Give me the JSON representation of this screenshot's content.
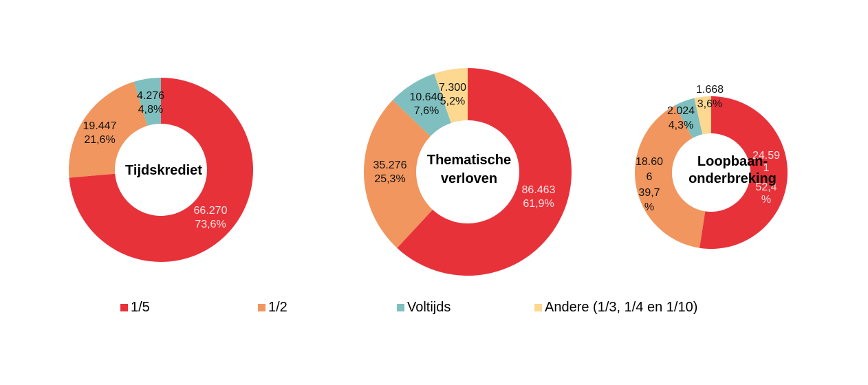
{
  "colors": {
    "one_fifth": "#e8323a",
    "half": "#f0965e",
    "full": "#7fbfbf",
    "other": "#fdd891"
  },
  "chart_data": [
    {
      "type": "pie",
      "title": "Tijdskrediet",
      "categories": [
        "1/5",
        "1/2",
        "Voltijds"
      ],
      "values": [
        66270,
        19447,
        4276
      ],
      "percentages": [
        73.6,
        21.6,
        4.8
      ],
      "labels": [
        {
          "value": "66.270",
          "pct": "73,6%"
        },
        {
          "value": "19.447",
          "pct": "21,6%"
        },
        {
          "value": "4.276",
          "pct": "4,8%"
        }
      ]
    },
    {
      "type": "pie",
      "title": "Thematische verloven",
      "categories": [
        "1/5",
        "1/2",
        "Voltijds",
        "Andere (1/3, 1/4 en 1/10)"
      ],
      "values": [
        86463,
        35276,
        10640,
        7300
      ],
      "percentages": [
        61.9,
        25.3,
        7.6,
        5.2
      ],
      "labels": [
        {
          "value": "86.463",
          "pct": "61,9%"
        },
        {
          "value": "35.276",
          "pct": "25,3%"
        },
        {
          "value": "10.640",
          "pct": "7,6%"
        },
        {
          "value": "7.300",
          "pct": "5,2%"
        }
      ]
    },
    {
      "type": "pie",
      "title": "Loopbaanonderbreking",
      "categories": [
        "1/5",
        "1/2",
        "Voltijds",
        "Andere (1/3, 1/4 en 1/10)"
      ],
      "values": [
        24591,
        18606,
        2024,
        1668
      ],
      "percentages": [
        52.4,
        39.7,
        4.3,
        3.6
      ],
      "labels": [
        {
          "value": "24.591",
          "pct": "52,4%"
        },
        {
          "value": "18.606",
          "pct": "39,7%"
        },
        {
          "value": "2.024",
          "pct": "4,3%"
        },
        {
          "value": "1.668",
          "pct": "3,6%"
        }
      ]
    }
  ],
  "charts": {
    "c1": {
      "title": "Tijdskrediet",
      "l1a": "66.270",
      "l1b": "73,6%",
      "l2a": "19.447",
      "l2b": "21,6%",
      "l3a": "4.276",
      "l3b": "4,8%"
    },
    "c2": {
      "title1": "Thematische",
      "title2": "verloven",
      "l1a": "86.463",
      "l1b": "61,9%",
      "l2a": "35.276",
      "l2b": "25,3%",
      "l3a": "10.640",
      "l3b": "7,6%",
      "l4a": "7.300",
      "l4b": "5,2%"
    },
    "c3": {
      "title1": "Loopbaan-",
      "title2": "onderbreking",
      "l1a": "24.59",
      "l1b": "1",
      "l1c": "52,4",
      "l1d": "%",
      "l2a": "18.60",
      "l2b": "6",
      "l2c": "39,7",
      "l2d": "%",
      "l3a": "2.024",
      "l3b": "4,3%",
      "l4a": "1.668",
      "l4b": "3,6%"
    }
  },
  "legend": [
    {
      "label": "1/5",
      "color": "#e8323a"
    },
    {
      "label": "1/2",
      "color": "#f0965e"
    },
    {
      "label": "Voltijds",
      "color": "#7fbfbf"
    },
    {
      "label": "Andere (1/3, 1/4 en 1/10)",
      "color": "#fdd891"
    }
  ]
}
